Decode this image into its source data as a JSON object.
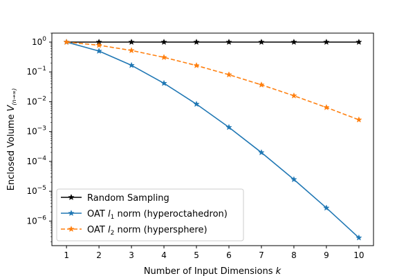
{
  "chart_data": {
    "type": "line",
    "x": [
      1,
      2,
      3,
      4,
      5,
      6,
      7,
      8,
      9,
      10
    ],
    "xlabel": "Number of Input Dimensions",
    "xlabel_var": "k",
    "ylabel": "Enclosed Volume",
    "ylabel_var": "V",
    "ylabel_sub": "(n→∞)",
    "yscale": "log",
    "xlim": [
      0.55,
      10.45
    ],
    "ylim": [
      1.5e-07,
      2.0
    ],
    "xticks": [
      "1",
      "2",
      "3",
      "4",
      "5",
      "6",
      "7",
      "8",
      "9",
      "10"
    ],
    "yticks": [
      {
        "value": 1,
        "base": "10",
        "exp": "0"
      },
      {
        "value": 0.1,
        "base": "10",
        "exp": "−1"
      },
      {
        "value": 0.01,
        "base": "10",
        "exp": "−2"
      },
      {
        "value": 0.001,
        "base": "10",
        "exp": "−3"
      },
      {
        "value": 0.0001,
        "base": "10",
        "exp": "−4"
      },
      {
        "value": 1e-05,
        "base": "10",
        "exp": "−5"
      },
      {
        "value": 1e-06,
        "base": "10",
        "exp": "−6"
      }
    ],
    "grid": false,
    "legend_position": "lower-left",
    "series": [
      {
        "name": "Random Sampling",
        "color": "#000000",
        "linestyle": "solid",
        "marker": "star",
        "values": [
          1,
          1,
          1,
          1,
          1,
          1,
          1,
          1,
          1,
          1
        ]
      },
      {
        "name_pre": "OAT ",
        "name_var": "l",
        "name_sub": "1",
        "name_post": " norm (hyperoctahedron)",
        "color": "#1f77b4",
        "linestyle": "solid",
        "marker": "star",
        "values": [
          1,
          0.5,
          0.1667,
          0.04167,
          0.008333,
          0.001389,
          0.0001984,
          2.48e-05,
          2.76e-06,
          2.76e-07
        ]
      },
      {
        "name_pre": "OAT ",
        "name_var": "l",
        "name_sub": "2",
        "name_post": " norm (hypersphere)",
        "color": "#ff7f0e",
        "linestyle": "dashed",
        "marker": "star",
        "values": [
          1,
          0.785,
          0.524,
          0.308,
          0.164,
          0.0807,
          0.0369,
          0.0159,
          0.00644,
          0.00249
        ]
      }
    ]
  }
}
